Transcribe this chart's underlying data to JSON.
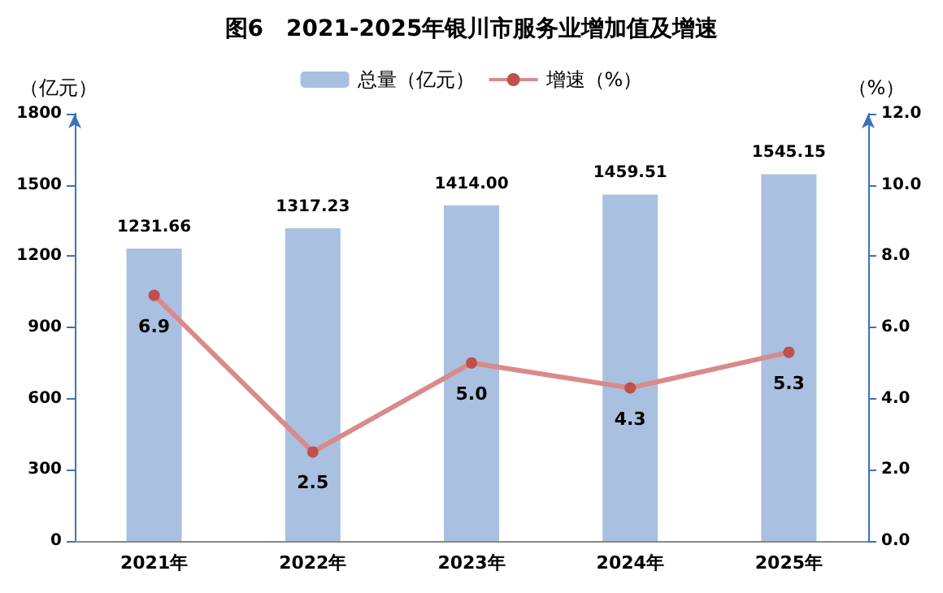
{
  "chart_data": {
    "type": "bar",
    "title": "图6　2021-2025年银川市服务业增加值及增速",
    "categories": [
      "2021年",
      "2022年",
      "2023年",
      "2024年",
      "2025年"
    ],
    "series": [
      {
        "name": "总量（亿元）",
        "color": "#a9c0e0",
        "values": [
          1231.66,
          1317.23,
          1414.0,
          1459.51,
          1545.15
        ],
        "value_labels": [
          "1231.66",
          "1317.23",
          "1414.00",
          "1459.51",
          "1545.15"
        ]
      },
      {
        "name": "增速（%）",
        "type": "line",
        "axis": "y2",
        "color": "#d98a8a",
        "values": [
          6.9,
          2.5,
          5.0,
          4.3,
          5.3
        ],
        "value_labels": [
          "6.9",
          "2.5",
          "5.0",
          "4.3",
          "5.3"
        ]
      }
    ],
    "ylabel": "（亿元）",
    "y2label": "（%）",
    "ylim": [
      0,
      1800
    ],
    "yticks": [
      0,
      300,
      600,
      900,
      1200,
      1500,
      1800
    ],
    "y2lim": [
      0,
      12
    ],
    "y2ticks": [
      {
        "value": 0,
        "label": "0.0"
      },
      {
        "value": 2,
        "label": "2.0"
      },
      {
        "value": 4,
        "label": "4.0"
      },
      {
        "value": 6,
        "label": "6.0"
      },
      {
        "value": 8,
        "label": "8.0"
      },
      {
        "value": 10,
        "label": "10.0"
      },
      {
        "value": 12,
        "label": "12.0"
      }
    ],
    "grid": false,
    "legend": "top",
    "marker": "circle",
    "line_style": "solid"
  }
}
